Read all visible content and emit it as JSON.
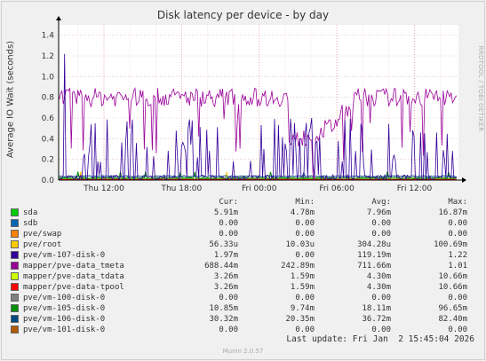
{
  "app": {
    "side_label": "RRDTOOL / TOBI OETIKER",
    "last_update": "Last update: Fri Jan  2 15:45:04 2026",
    "footer": "Munin 2.0.57"
  },
  "chart_data": {
    "type": "line",
    "title": "Disk latency per device - by day",
    "ylabel": "Average IO Wait (seconds)",
    "xlabel": "",
    "ylim": [
      0,
      1.5
    ],
    "yticks": [
      "0.0",
      "0.2",
      "0.4",
      "0.6",
      "0.8",
      "1.0",
      "1.2",
      "1.4"
    ],
    "xticks": [
      "Thu 12:00",
      "Thu 18:00",
      "Fri 00:00",
      "Fri 06:00",
      "Fri 12:00"
    ],
    "xtick_hours": [
      12,
      18,
      24,
      30,
      36
    ],
    "x_range_hours": [
      8.5,
      39.4
    ],
    "grid": true,
    "legend_header": [
      "",
      "Cur:",
      "Min:",
      "Avg:",
      "Max:"
    ],
    "series": [
      {
        "name": "sda",
        "color": "#00cc00",
        "cur": "5.91m",
        "min": "4.78m",
        "avg": "7.96m",
        "max": "16.87m"
      },
      {
        "name": "sdb",
        "color": "#0066b3",
        "cur": "0.00",
        "min": "0.00",
        "avg": "0.00",
        "max": "0.00"
      },
      {
        "name": "pve/swap",
        "color": "#ff8000",
        "cur": "0.00",
        "min": "0.00",
        "avg": "0.00",
        "max": "0.00"
      },
      {
        "name": "pve/root",
        "color": "#ffcc00",
        "cur": "56.33u",
        "min": "10.03u",
        "avg": "304.28u",
        "max": "100.69m"
      },
      {
        "name": "pve/vm-107-disk-0",
        "color": "#330099",
        "cur": "1.97m",
        "min": "0.00",
        "avg": "119.19m",
        "max": "1.22"
      },
      {
        "name": "mapper/pve-data_tmeta",
        "color": "#990099",
        "cur": "688.44m",
        "min": "242.89m",
        "avg": "711.66m",
        "max": "1.01"
      },
      {
        "name": "mapper/pve-data_tdata",
        "color": "#ccff00",
        "cur": "3.26m",
        "min": "1.59m",
        "avg": "4.30m",
        "max": "10.66m"
      },
      {
        "name": "mapper/pve-data-tpool",
        "color": "#ff0000",
        "cur": "3.26m",
        "min": "1.59m",
        "avg": "4.30m",
        "max": "10.66m"
      },
      {
        "name": "pve/vm-100-disk-0",
        "color": "#808080",
        "cur": "0.00",
        "min": "0.00",
        "avg": "0.00",
        "max": "0.00"
      },
      {
        "name": "pve/vm-105-disk-0",
        "color": "#008f00",
        "cur": "10.85m",
        "min": "9.74m",
        "avg": "18.11m",
        "max": "96.65m"
      },
      {
        "name": "pve/vm-106-disk-0",
        "color": "#00487d",
        "cur": "30.32m",
        "min": "20.35m",
        "avg": "36.72m",
        "max": "82.40m"
      },
      {
        "name": "pve/vm-101-disk-0",
        "color": "#b35a00",
        "cur": "0.00",
        "min": "0.00",
        "avg": "0.00",
        "max": "0.00"
      }
    ]
  }
}
